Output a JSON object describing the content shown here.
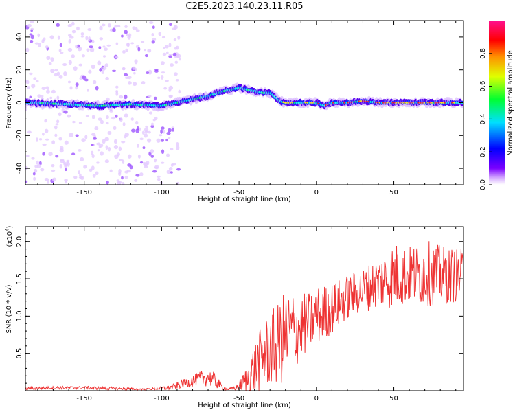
{
  "title": "C2E5.2023.140.23.11.R05",
  "chart_data": [
    {
      "type": "heatmap",
      "xlabel": "Height of straight line (km)",
      "ylabel": "Frequency (Hz)",
      "xlim": [
        -188,
        95
      ],
      "ylim": [
        -50,
        50
      ],
      "xticks": [
        -150,
        -100,
        -50,
        0,
        50
      ],
      "yticks": [
        -40,
        -20,
        0,
        20,
        40
      ],
      "colorbar": {
        "label": "Normalized spectral amplitude",
        "range": [
          0,
          1
        ],
        "ticks": [
          "0.0",
          "0.2",
          "0.4",
          "0.6",
          "0.8"
        ],
        "colormap": "rainbow"
      },
      "ridge": {
        "x": [
          -188,
          -160,
          -140,
          -120,
          -100,
          -90,
          -80,
          -70,
          -60,
          -50,
          -45,
          -40,
          -35,
          -30,
          -26,
          -24,
          -20,
          -15,
          -10,
          0,
          5,
          10,
          20,
          30,
          40,
          50,
          60,
          70,
          80,
          95
        ],
        "y": [
          0,
          -1,
          -2,
          -1,
          -2,
          0,
          2,
          4,
          7,
          9,
          8,
          7,
          6,
          6,
          3,
          1,
          0,
          0,
          0,
          0,
          -2,
          0,
          0,
          1,
          0,
          0,
          0,
          0,
          0,
          0
        ]
      },
      "grid": false
    },
    {
      "type": "line",
      "xlabel": "Height of straight line (km)",
      "ylabel": "SNR (10 * v/v)",
      "y_scale_note": "(x10^4)",
      "xlim": [
        -188,
        95
      ],
      "ylim": [
        0,
        2.2
      ],
      "xticks": [
        -150,
        -100,
        -50,
        0,
        50
      ],
      "yticks": [
        "0.5",
        "1.0",
        "1.5",
        "2.0"
      ],
      "color": "#ee3333",
      "envelope": {
        "x": [
          -188,
          -170,
          -150,
          -130,
          -110,
          -95,
          -85,
          -75,
          -70,
          -65,
          -60,
          -55,
          -50,
          -45,
          -40,
          -35,
          -30,
          -25,
          -20,
          -15,
          -10,
          -5,
          0,
          10,
          20,
          30,
          40,
          50,
          60,
          70,
          80,
          95
        ],
        "mean": [
          0.03,
          0.04,
          0.04,
          0.03,
          0.02,
          0.04,
          0.1,
          0.16,
          0.18,
          0.13,
          0.03,
          0.02,
          0.06,
          0.15,
          0.3,
          0.45,
          0.55,
          0.62,
          0.72,
          0.8,
          0.86,
          0.92,
          1.0,
          1.1,
          1.25,
          1.35,
          1.45,
          1.55,
          1.55,
          1.58,
          1.55,
          1.55
        ],
        "amp": [
          0.02,
          0.02,
          0.02,
          0.02,
          0.01,
          0.03,
          0.06,
          0.1,
          0.12,
          0.1,
          0.02,
          0.02,
          0.06,
          0.18,
          0.35,
          0.45,
          0.5,
          0.55,
          0.65,
          0.55,
          0.45,
          0.4,
          0.4,
          0.35,
          0.3,
          0.3,
          0.35,
          0.45,
          0.4,
          0.45,
          0.4,
          0.35
        ]
      },
      "grid": false
    }
  ]
}
